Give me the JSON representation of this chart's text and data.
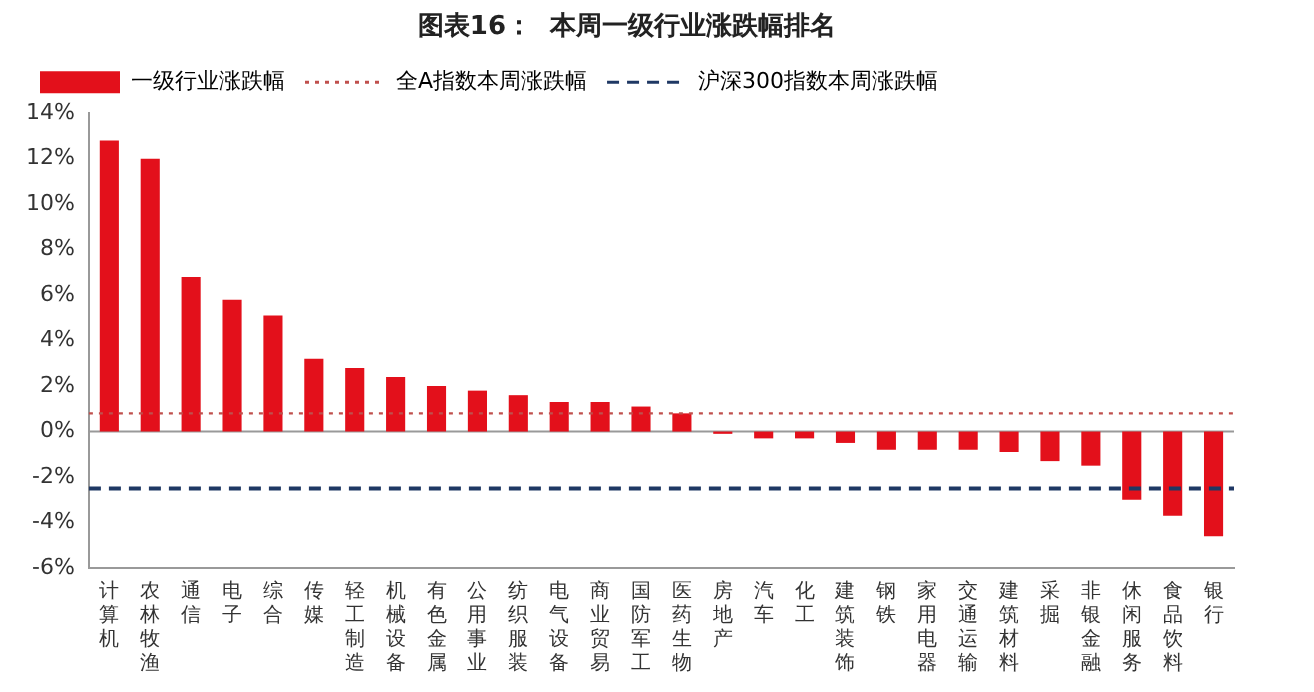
{
  "chart_data": {
    "type": "bar",
    "title": "图表16：  本周一级行业涨跌幅排名",
    "categories": [
      "计算机",
      "农林牧渔",
      "通信",
      "电子",
      "综合",
      "传媒",
      "轻工制造",
      "机械设备",
      "有色金属",
      "公用事业",
      "纺织服装",
      "电气设备",
      "商业贸易",
      "国防军工",
      "医药生物",
      "房地产",
      "汽车",
      "化工",
      "建筑装饰",
      "钢铁",
      "家用电器",
      "交通运输",
      "建筑材料",
      "采掘",
      "非银金融",
      "休闲服务",
      "食品饮料",
      "银行"
    ],
    "series": [
      {
        "name": "一级行业涨跌幅",
        "color": "#e3101b",
        "values": [
          12.8,
          12.0,
          6.8,
          5.8,
          5.1,
          3.2,
          2.8,
          2.4,
          2.0,
          1.8,
          1.6,
          1.3,
          1.3,
          1.1,
          0.8,
          -0.1,
          -0.3,
          -0.3,
          -0.5,
          -0.8,
          -0.8,
          -0.8,
          -0.9,
          -1.3,
          -1.5,
          -3.0,
          -3.7,
          -4.6
        ]
      }
    ],
    "ylim": [
      -6,
      14
    ],
    "yticks": [
      {
        "value": -6,
        "label": "-6%"
      },
      {
        "value": -4,
        "label": "-4%"
      },
      {
        "value": -2,
        "label": "-2%"
      },
      {
        "value": 0,
        "label": "0%"
      },
      {
        "value": 2,
        "label": "2%"
      },
      {
        "value": 4,
        "label": "4%"
      },
      {
        "value": 6,
        "label": "6%"
      },
      {
        "value": 8,
        "label": "8%"
      },
      {
        "value": 10,
        "label": "10%"
      },
      {
        "value": 12,
        "label": "12%"
      },
      {
        "value": 14,
        "label": "14%"
      }
    ],
    "ref_lines": [
      {
        "axis": "y",
        "value": 0,
        "color": "#999999",
        "line_style": "solid"
      },
      {
        "axis": "y",
        "value": 0.8,
        "label": "全A指数本周涨跌幅",
        "color": "#c0504d",
        "line_style": "dotted"
      },
      {
        "axis": "y",
        "value": -2.5,
        "label": "沪深300指数本周涨跌幅",
        "color": "#1f3864",
        "line_style": "dashed"
      }
    ],
    "legend": "top",
    "grid": false
  }
}
